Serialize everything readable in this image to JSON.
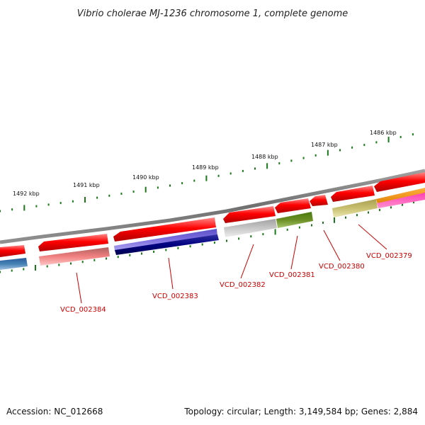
{
  "title": "Vibrio cholerae MJ-1236 chromosome 1, complete genome",
  "ticks": [
    {
      "label": "1492 kbp"
    },
    {
      "label": "1491 kbp"
    },
    {
      "label": "1490 kbp"
    },
    {
      "label": "1489 kbp"
    },
    {
      "label": "1488 kbp"
    },
    {
      "label": "1487 kbp"
    },
    {
      "label": "1486 kbp"
    }
  ],
  "gene_labels": [
    {
      "label": "VCD_002384"
    },
    {
      "label": "VCD_002383"
    },
    {
      "label": "VCD_002382"
    },
    {
      "label": "VCD_002381"
    },
    {
      "label": "VCD_002380"
    },
    {
      "label": "VCD_002379"
    }
  ],
  "colors": {
    "backbone": "#7a7a7a",
    "cds": "#ff0000",
    "label": "#cc0000",
    "gc_marks": "#1a7a1a"
  },
  "footer": {
    "accession": "Accession: NC_012668",
    "summary": "Topology: circular; Length: 3,149,584 bp; Genes: 2,884"
  }
}
